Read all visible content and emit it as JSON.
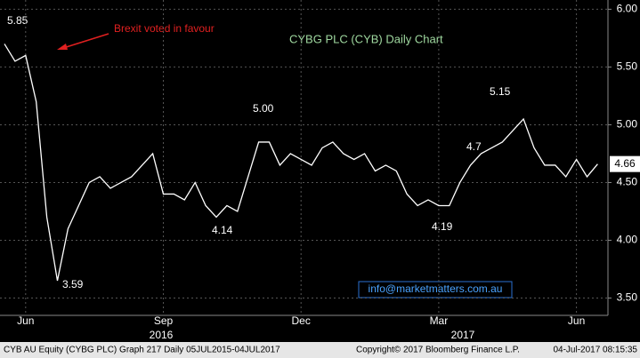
{
  "chart_data": {
    "type": "line",
    "title": "CYBG PLC (CYB) Daily Chart",
    "categories": [
      null,
      null,
      "Jun",
      null,
      null,
      null,
      null,
      null,
      null,
      null,
      null,
      null,
      null,
      null,
      null,
      "Sep",
      null,
      null,
      null,
      null,
      null,
      null,
      null,
      null,
      null,
      null,
      null,
      null,
      "Dec",
      null,
      null,
      null,
      null,
      null,
      null,
      null,
      null,
      null,
      null,
      null,
      null,
      "Mar",
      null,
      null,
      null,
      null,
      null,
      null,
      null,
      null,
      null,
      null,
      null,
      null,
      "Jun",
      null,
      null
    ],
    "years": [
      "2016",
      "2017"
    ],
    "series": [
      {
        "name": "CYB AU Equity",
        "color": "#ffffff",
        "values": [
          5.7,
          5.55,
          5.6,
          5.2,
          4.2,
          3.65,
          4.1,
          4.3,
          4.5,
          4.55,
          4.45,
          4.5,
          4.55,
          4.65,
          4.75,
          4.4,
          4.4,
          4.35,
          4.5,
          4.3,
          4.2,
          4.3,
          4.25,
          4.55,
          4.85,
          4.85,
          4.65,
          4.75,
          4.7,
          4.65,
          4.8,
          4.85,
          4.75,
          4.7,
          4.75,
          4.6,
          4.65,
          4.6,
          4.4,
          4.3,
          4.35,
          4.3,
          4.3,
          4.5,
          4.65,
          4.75,
          4.8,
          4.85,
          4.95,
          5.05,
          4.8,
          4.65,
          4.65,
          4.55,
          4.7,
          4.55,
          4.66
        ]
      }
    ],
    "ylim": [
      3.35,
      6.08
    ],
    "yticks": [
      {
        "value": 3.5,
        "label": "3.50"
      },
      {
        "value": 4,
        "label": "4.00"
      },
      {
        "value": 4.5,
        "label": "4.50"
      },
      {
        "value": 5,
        "label": "5.00"
      },
      {
        "value": 5.5,
        "label": "5.50"
      },
      {
        "value": 6,
        "label": "6.00"
      }
    ],
    "grid": true,
    "annotations": [
      "Brexit voted in favour",
      "5.85",
      "3.59",
      "4.14",
      "5.00",
      "4.19",
      "5.15",
      "4.7",
      "info@marketmatters.com.au"
    ],
    "footer": [
      "CYB AU Equity (CYBG PLC) Graph 217  Daily 05JUL2015-04JUL2017",
      "Copyright© 2017 Bloomberg Finance L.P.",
      "04-Jul-2017 08:15:35"
    ]
  }
}
